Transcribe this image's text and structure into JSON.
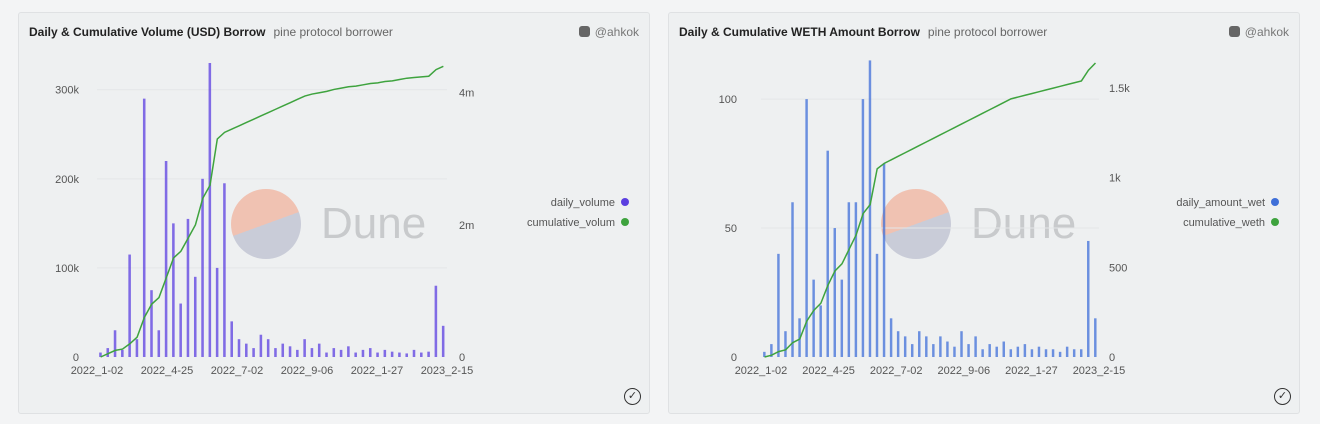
{
  "panels": [
    {
      "title": "Daily & Cumulative Volume (USD) Borrow",
      "subtitle": "pine protocol borrower",
      "author": "@ahkok",
      "watermark": "Dune",
      "legend": [
        "daily_volume",
        "cumulative_volum"
      ]
    },
    {
      "title": "Daily & Cumulative WETH Amount Borrow",
      "subtitle": "pine protocol borrower",
      "author": "@ahkok",
      "watermark": "Dune",
      "legend": [
        "daily_amount_wet",
        "cumulative_weth"
      ]
    }
  ],
  "chart_data": [
    {
      "type": "bar+line",
      "x_ticks": [
        "2022_1-02",
        "2022_4-25",
        "2022_7-02",
        "2022_9-06",
        "2022_1-27",
        "2023_2-15"
      ],
      "left_ticks": [
        {
          "v": 0,
          "l": "0"
        },
        {
          "v": 100,
          "l": "100k"
        },
        {
          "v": 200,
          "l": "200k"
        },
        {
          "v": 300,
          "l": "300k"
        }
      ],
      "left_max": 330,
      "right_ticks": [
        {
          "v": 0,
          "l": "0"
        },
        {
          "v": 2,
          "l": "2m"
        },
        {
          "v": 4,
          "l": "4m"
        }
      ],
      "right_max": 4.45,
      "bar_color": "#5b3fe0",
      "line_color": "#3ea33e",
      "daily_k": [
        5,
        10,
        30,
        8,
        115,
        20,
        290,
        75,
        30,
        220,
        150,
        60,
        155,
        90,
        200,
        330,
        100,
        195,
        40,
        20,
        15,
        10,
        25,
        20,
        10,
        15,
        12,
        8,
        20,
        10,
        15,
        5,
        10,
        8,
        12,
        5,
        8,
        10,
        5,
        8,
        6,
        5,
        4,
        8,
        5,
        6,
        80,
        35
      ],
      "cumulative_m": [
        0,
        0.05,
        0.1,
        0.12,
        0.2,
        0.3,
        0.6,
        0.8,
        0.9,
        1.2,
        1.5,
        1.6,
        1.8,
        2.0,
        2.4,
        2.6,
        3.3,
        3.4,
        3.45,
        3.5,
        3.55,
        3.6,
        3.65,
        3.7,
        3.75,
        3.8,
        3.85,
        3.9,
        3.95,
        3.98,
        4.0,
        4.02,
        4.05,
        4.07,
        4.09,
        4.1,
        4.12,
        4.14,
        4.15,
        4.17,
        4.18,
        4.2,
        4.22,
        4.23,
        4.24,
        4.25,
        4.35,
        4.4
      ]
    },
    {
      "type": "bar+line",
      "x_ticks": [
        "2022_1-02",
        "2022_4-25",
        "2022_7-02",
        "2022_9-06",
        "2022_1-27",
        "2023_2-15"
      ],
      "left_ticks": [
        {
          "v": 0,
          "l": "0"
        },
        {
          "v": 50,
          "l": "50"
        },
        {
          "v": 100,
          "l": "100"
        }
      ],
      "left_max": 114,
      "right_ticks": [
        {
          "v": 0,
          "l": "0"
        },
        {
          "v": 500,
          "l": "500"
        },
        {
          "v": 1000,
          "l": "1k"
        },
        {
          "v": 1500,
          "l": "1.5k"
        }
      ],
      "right_max": 1640,
      "bar_color": "#3f6fd8",
      "line_color": "#3ea33e",
      "daily": [
        2,
        5,
        40,
        10,
        60,
        15,
        100,
        30,
        20,
        80,
        50,
        30,
        60,
        60,
        100,
        115,
        40,
        75,
        15,
        10,
        8,
        5,
        10,
        8,
        5,
        8,
        6,
        4,
        10,
        5,
        8,
        3,
        5,
        4,
        6,
        3,
        4,
        5,
        3,
        4,
        3,
        3,
        2,
        4,
        3,
        3,
        45,
        15
      ],
      "cumulative": [
        0,
        10,
        30,
        40,
        80,
        100,
        200,
        260,
        300,
        400,
        480,
        520,
        600,
        680,
        800,
        850,
        1050,
        1080,
        1100,
        1120,
        1140,
        1160,
        1180,
        1200,
        1220,
        1240,
        1260,
        1280,
        1300,
        1320,
        1340,
        1360,
        1380,
        1400,
        1420,
        1440,
        1450,
        1460,
        1470,
        1480,
        1490,
        1500,
        1510,
        1520,
        1530,
        1540,
        1600,
        1640
      ]
    }
  ]
}
